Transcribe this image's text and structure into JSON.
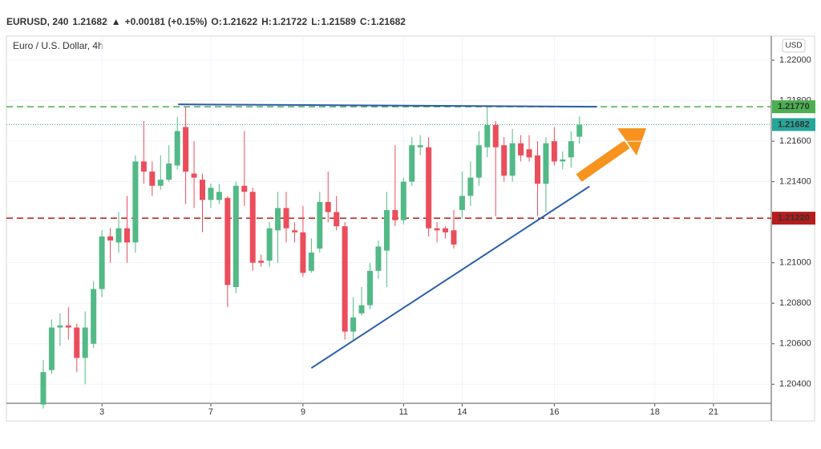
{
  "header": {
    "symbol": "EURUSD, 240",
    "price": "1.21682",
    "arrow": "▲",
    "change": "+0.00181 (+0.15%)",
    "o_label": "O:",
    "o": "1.21622",
    "h_label": "H:",
    "h": "1.21722",
    "l_label": "L:",
    "l": "1.21589",
    "c_label": "C:",
    "c": "1.21682",
    "currency": "USD"
  },
  "chart_data": {
    "type": "candlestick",
    "title": "Euro / U.S. Dollar, 4h",
    "up_color": "#53b987",
    "down_color": "#eb4d5c",
    "x": [
      0,
      1,
      2,
      3,
      4,
      5,
      6,
      7,
      8,
      9,
      10,
      11,
      12,
      13,
      14,
      15,
      16,
      17,
      18,
      19,
      20,
      21,
      22,
      23,
      24,
      25,
      26,
      27,
      28,
      29,
      30,
      31,
      32,
      33,
      34,
      35,
      36,
      37,
      38,
      39,
      40,
      41,
      42,
      43,
      44,
      45,
      46,
      47,
      48,
      49,
      50,
      51,
      52,
      53,
      54,
      55,
      56,
      57,
      58,
      59,
      60,
      61,
      62,
      63,
      64
    ],
    "open": [
      1.203,
      1.2047,
      1.2068,
      1.2069,
      1.2068,
      1.2053,
      1.206,
      1.2087,
      1.2113,
      1.211,
      1.2117,
      1.211,
      1.215,
      1.2145,
      1.2138,
      1.2141,
      1.2148,
      1.2167,
      1.2144,
      1.2141,
      1.2131,
      1.2131,
      1.2132,
      1.2088,
      1.2138,
      1.2135,
      1.2101,
      1.2101,
      1.2116,
      1.2127,
      1.2116,
      1.2115,
      1.2096,
      1.2107,
      1.213,
      1.2125,
      1.2118,
      1.2066,
      1.2075,
      1.2079,
      1.2096,
      1.2106,
      1.2126,
      1.2121,
      1.214,
      1.2157,
      1.2157,
      1.2117,
      1.2117,
      1.2116,
      1.2126,
      1.2133,
      1.2142,
      1.2157,
      1.2168,
      1.2158,
      1.2143,
      1.2159,
      1.2156,
      1.2153,
      1.2139,
      1.216,
      1.215,
      1.2152,
      1.21622
    ],
    "high": [
      1.2052,
      1.2072,
      1.2075,
      1.2078,
      1.207,
      1.2076,
      1.2091,
      1.2116,
      1.2117,
      1.2125,
      1.2133,
      1.2153,
      1.217,
      1.215,
      1.2153,
      1.2158,
      1.2172,
      1.2177,
      1.216,
      1.2144,
      1.2139,
      1.2139,
      1.2133,
      1.214,
      1.2165,
      1.2137,
      1.2104,
      1.212,
      1.2135,
      1.2135,
      1.212,
      1.2128,
      1.2112,
      1.2135,
      1.2145,
      1.2133,
      1.212,
      1.2083,
      1.2088,
      1.21,
      1.2111,
      1.2135,
      1.2158,
      1.2142,
      1.2162,
      1.2163,
      1.2162,
      1.212,
      1.2118,
      1.2126,
      1.2145,
      1.215,
      1.2165,
      1.2177,
      1.217,
      1.2162,
      1.2166,
      1.2163,
      1.2163,
      1.216,
      1.2162,
      1.2167,
      1.2155,
      1.2165,
      1.21722
    ],
    "low": [
      1.2028,
      1.2045,
      1.2059,
      1.2062,
      1.2046,
      1.204,
      1.2058,
      1.2083,
      1.21,
      1.2105,
      1.21,
      1.2105,
      1.2139,
      1.2133,
      1.2136,
      1.214,
      1.2146,
      1.2129,
      1.2127,
      1.2115,
      1.2127,
      1.2129,
      1.2078,
      1.2085,
      1.2128,
      1.2096,
      1.2098,
      1.2098,
      1.21,
      1.211,
      1.211,
      1.2093,
      1.2095,
      1.2105,
      1.212,
      1.2116,
      1.2062,
      1.2062,
      1.2074,
      1.2077,
      1.2092,
      1.2088,
      1.2118,
      1.2119,
      1.2138,
      1.2153,
      1.2113,
      1.211,
      1.2112,
      1.2107,
      1.2122,
      1.2128,
      1.2138,
      1.2152,
      1.2123,
      1.214,
      1.214,
      1.215,
      1.215,
      1.2123,
      1.2125,
      1.2148,
      1.2146,
      1.2147,
      1.21589
    ],
    "close": [
      1.2046,
      1.2068,
      1.2069,
      1.2068,
      1.2053,
      1.2068,
      1.2087,
      1.2113,
      1.2111,
      1.2117,
      1.211,
      1.215,
      1.2145,
      1.2138,
      1.2141,
      1.2149,
      1.2165,
      1.2145,
      1.2142,
      1.2131,
      1.2137,
      1.2135,
      1.2089,
      1.2138,
      1.2135,
      1.21,
      1.21,
      1.2117,
      1.2127,
      1.2117,
      1.2115,
      1.2095,
      1.2105,
      1.213,
      1.2125,
      1.2118,
      1.2066,
      1.2073,
      1.2079,
      1.2096,
      1.2108,
      1.2126,
      1.2121,
      1.214,
      1.2158,
      1.2158,
      1.2117,
      1.2116,
      1.2115,
      1.2109,
      1.2133,
      1.2142,
      1.2158,
      1.2168,
      1.2157,
      1.2143,
      1.2159,
      1.2153,
      1.2152,
      1.2139,
      1.2159,
      1.215,
      1.2151,
      1.216,
      1.21682
    ],
    "xlim": [
      -4.4,
      86.9
    ],
    "xticks": [
      {
        "value": 7,
        "label": "3"
      },
      {
        "value": 20,
        "label": "7"
      },
      {
        "value": 31,
        "label": "9"
      },
      {
        "value": 43,
        "label": "11"
      },
      {
        "value": 50,
        "label": "14"
      },
      {
        "value": 61,
        "label": "16"
      },
      {
        "value": 73,
        "label": "18"
      },
      {
        "value": 80,
        "label": "21"
      }
    ],
    "ylim": [
      1.20306,
      1.22119
    ],
    "yticks": [
      {
        "value": 1.204,
        "label": "1.20400"
      },
      {
        "value": 1.206,
        "label": "1.20600"
      },
      {
        "value": 1.208,
        "label": "1.20800"
      },
      {
        "value": 1.21,
        "label": "1.21000"
      },
      {
        "value": 1.212,
        "label": "1.21200"
      },
      {
        "value": 1.214,
        "label": "1.21400"
      },
      {
        "value": 1.216,
        "label": "1.21600"
      },
      {
        "value": 1.218,
        "label": "1.21800"
      },
      {
        "value": 1.22,
        "label": "1.22000"
      }
    ],
    "grid": true,
    "levels": [
      {
        "value": 1.2177,
        "label": "1.21770",
        "color": "#4caf50",
        "style": "dashed"
      },
      {
        "value": 1.21682,
        "label": "1.21682",
        "color": "#26a69a",
        "style": "dotted"
      },
      {
        "value": 1.2122,
        "label": "1.21220",
        "color": "#b71c1c",
        "style": "dashed"
      }
    ],
    "trendlines": [
      {
        "x": [
          16.1,
          66.1
        ],
        "y": [
          1.21782,
          1.2177
        ],
        "color": "#2a5caa"
      },
      {
        "x": [
          32.0,
          65.2
        ],
        "y": [
          1.2048,
          1.21377
        ],
        "color": "#2a5caa"
      }
    ]
  }
}
